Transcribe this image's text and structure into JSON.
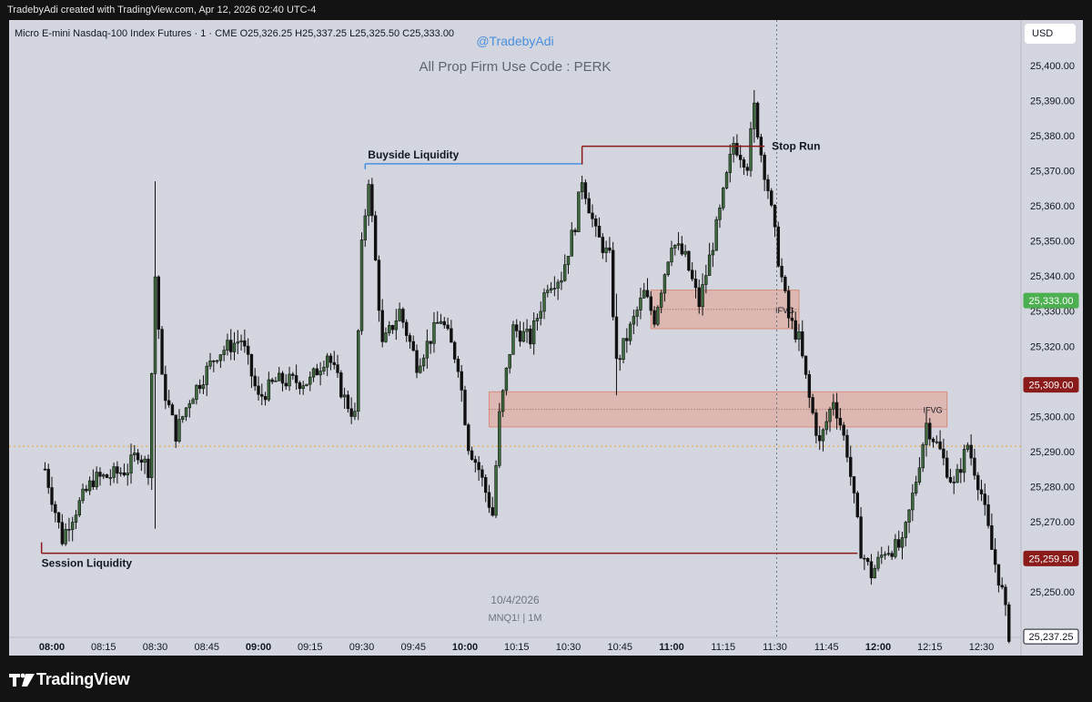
{
  "header": {
    "caption": "TradebyAdi created with TradingView.com, Apr 12, 2026 02:40 UTC-4"
  },
  "legend": {
    "symbol_line": "Micro E-mini Nasdaq-100 Index Futures · 1 · CME  O25,326.25  H25,337.25  L25,325.50  C25,333.00"
  },
  "watermark": {
    "handle": "@TradebyAdi",
    "promo": "All Prop Firm Use Code : PERK",
    "date": "10/4/2026",
    "symbol": "MNQ1! | 1M"
  },
  "currency_button": "USD",
  "footer": {
    "brand": "TradingView"
  },
  "colors": {
    "background": "#d3d6de",
    "candle_up": "#3d6b3d",
    "candle_down": "#111111",
    "liquidity_line": "#8b1a1a",
    "buyside_line": "#4a90e2",
    "fvg_zone": "#e6a08e",
    "last_price": "#4caf50",
    "level_marker": "#8b1a1a"
  },
  "chart_data": {
    "type": "candlestick",
    "instrument": "MNQ1!",
    "timeframe": "1",
    "x_tick_labels": [
      {
        "t": "08:00",
        "bold": true
      },
      {
        "t": "08:15",
        "bold": false
      },
      {
        "t": "08:30",
        "bold": false
      },
      {
        "t": "08:45",
        "bold": false
      },
      {
        "t": "09:00",
        "bold": true
      },
      {
        "t": "09:15",
        "bold": false
      },
      {
        "t": "09:30",
        "bold": false
      },
      {
        "t": "09:45",
        "bold": false
      },
      {
        "t": "10:00",
        "bold": true
      },
      {
        "t": "10:15",
        "bold": false
      },
      {
        "t": "10:30",
        "bold": false
      },
      {
        "t": "10:45",
        "bold": false
      },
      {
        "t": "11:00",
        "bold": true
      },
      {
        "t": "11:15",
        "bold": false
      },
      {
        "t": "11:30",
        "bold": false
      },
      {
        "t": "11:45",
        "bold": false
      },
      {
        "t": "12:00",
        "bold": true
      },
      {
        "t": "12:15",
        "bold": false
      },
      {
        "t": "12:30",
        "bold": false
      }
    ],
    "y_tick_labels": [
      "25,400.00",
      "25,390.00",
      "25,380.00",
      "25,370.00",
      "25,360.00",
      "25,350.00",
      "25,340.00",
      "25,330.00",
      "25,320.00",
      "25,300.00",
      "25,290.00",
      "25,280.00",
      "25,270.00",
      "25,250.00"
    ],
    "y_range": [
      25235,
      25407
    ],
    "price_badges": {
      "last_price": {
        "label": "25,333.00",
        "value": 25333.0
      },
      "level_1": {
        "label": "25,309.00",
        "value": 25309.0
      },
      "level_2": {
        "label": "25,259.50",
        "value": 25259.5
      },
      "cursor_price": {
        "label": "25,237.25",
        "value": 25237.25
      }
    },
    "annotations": {
      "buyside": {
        "label": "Buyside Liquidity",
        "price": 25372,
        "from": "09:31",
        "to": "10:34"
      },
      "stop_run": {
        "label": "Stop Run",
        "price": 25377,
        "from": "10:34",
        "to": "11:27"
      },
      "session": {
        "label": "Session Liquidity",
        "price": 25261,
        "from": "07:57",
        "to": "11:54"
      },
      "orange_dotted": {
        "price": 25291.5
      },
      "ifvg_1": {
        "label": "IFVG",
        "top": 25336,
        "bottom": 25325,
        "from": "10:54",
        "to": "11:37"
      },
      "ifvg_2": {
        "label": "IFVG",
        "top": 25307,
        "bottom": 25297,
        "from": "10:07",
        "to": "12:20"
      },
      "crosshair_time": "11:30"
    },
    "price_path": [
      [
        "07:58",
        25285
      ],
      [
        "08:03",
        25265
      ],
      [
        "08:05",
        25270
      ],
      [
        "08:12",
        25282
      ],
      [
        "08:17",
        25283
      ],
      [
        "08:22",
        25285
      ],
      [
        "08:25",
        25290
      ],
      [
        "08:28",
        25285
      ],
      [
        "08:30",
        25340
      ],
      [
        "08:32",
        25310
      ],
      [
        "08:36",
        25295
      ],
      [
        "08:40",
        25305
      ],
      [
        "08:48",
        25318
      ],
      [
        "08:55",
        25322
      ],
      [
        "09:00",
        25305
      ],
      [
        "09:05",
        25310
      ],
      [
        "09:15",
        25310
      ],
      [
        "09:20",
        25318
      ],
      [
        "09:25",
        25305
      ],
      [
        "09:28",
        25300
      ],
      [
        "09:30",
        25348
      ],
      [
        "09:32",
        25368
      ],
      [
        "09:36",
        25320
      ],
      [
        "09:41",
        25330
      ],
      [
        "09:46",
        25315
      ],
      [
        "09:53",
        25328
      ],
      [
        "09:58",
        25315
      ],
      [
        "10:01",
        25292
      ],
      [
        "10:04",
        25285
      ],
      [
        "10:08",
        25272
      ],
      [
        "10:10",
        25300
      ],
      [
        "10:14",
        25325
      ],
      [
        "10:19",
        25322
      ],
      [
        "10:24",
        25338
      ],
      [
        "10:28",
        25340
      ],
      [
        "10:32",
        25355
      ],
      [
        "10:34",
        25368
      ],
      [
        "10:38",
        25352
      ],
      [
        "10:42",
        25345
      ],
      [
        "10:44",
        25315
      ],
      [
        "10:48",
        25325
      ],
      [
        "10:52",
        25335
      ],
      [
        "10:55",
        25328
      ],
      [
        "11:00",
        25350
      ],
      [
        "11:04",
        25345
      ],
      [
        "11:08",
        25332
      ],
      [
        "11:14",
        25358
      ],
      [
        "11:18",
        25378
      ],
      [
        "11:22",
        25372
      ],
      [
        "11:24",
        25388
      ],
      [
        "11:26",
        25375
      ],
      [
        "11:28",
        25365
      ],
      [
        "11:31",
        25345
      ],
      [
        "11:34",
        25328
      ],
      [
        "11:37",
        25322
      ],
      [
        "11:40",
        25305
      ],
      [
        "11:43",
        25292
      ],
      [
        "11:47",
        25305
      ],
      [
        "11:49",
        25298
      ],
      [
        "11:51",
        25290
      ],
      [
        "11:55",
        25262
      ],
      [
        "11:58",
        25255
      ],
      [
        "12:02",
        25262
      ],
      [
        "12:07",
        25263
      ],
      [
        "12:11",
        25282
      ],
      [
        "12:14",
        25298
      ],
      [
        "12:18",
        25290
      ],
      [
        "12:22",
        25280
      ],
      [
        "12:26",
        25292
      ],
      [
        "12:30",
        25278
      ],
      [
        "12:33",
        25262
      ],
      [
        "12:36",
        25250
      ],
      [
        "12:38",
        25238
      ]
    ]
  }
}
